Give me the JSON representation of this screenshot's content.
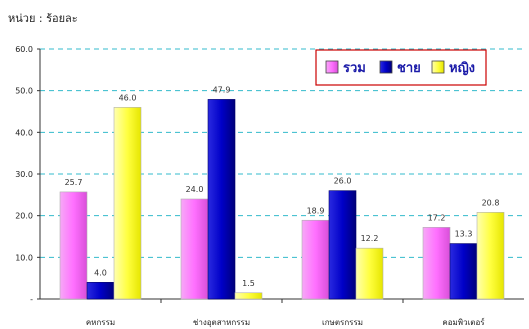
{
  "unit_label": "หน่วย : ร้อยละ",
  "chart_data": {
    "type": "bar",
    "categories": [
      "คหกรรม",
      "ช่างอุตสาหกรรม",
      "เกษตรกรรม",
      "คอมพิวเตอร์"
    ],
    "series": [
      {
        "name": "รวม",
        "values": [
          25.7,
          24.0,
          18.9,
          17.2
        ],
        "color": "#ff80ff"
      },
      {
        "name": "ชาย",
        "values": [
          4.0,
          47.9,
          26.0,
          13.3
        ],
        "color": "#0000cc"
      },
      {
        "name": "หญิง",
        "values": [
          46.0,
          1.5,
          12.2,
          20.8
        ],
        "color": "#ffff33"
      }
    ],
    "ylim": [
      0,
      60
    ],
    "yticks": [
      "-",
      "10.0",
      "20.0",
      "30.0",
      "40.0",
      "50.0",
      "60.0"
    ],
    "data_labels": [
      [
        "25.7",
        "24.0",
        "18.9",
        "17.2"
      ],
      [
        "4.0",
        "47.9",
        "26.0",
        "13.3"
      ],
      [
        "46.0",
        "1.5",
        "12.2",
        "20.8"
      ]
    ],
    "grid": true,
    "legend_position": "top-right",
    "legend_border_color": "#cc0000",
    "grid_color": "#33bbcc"
  }
}
